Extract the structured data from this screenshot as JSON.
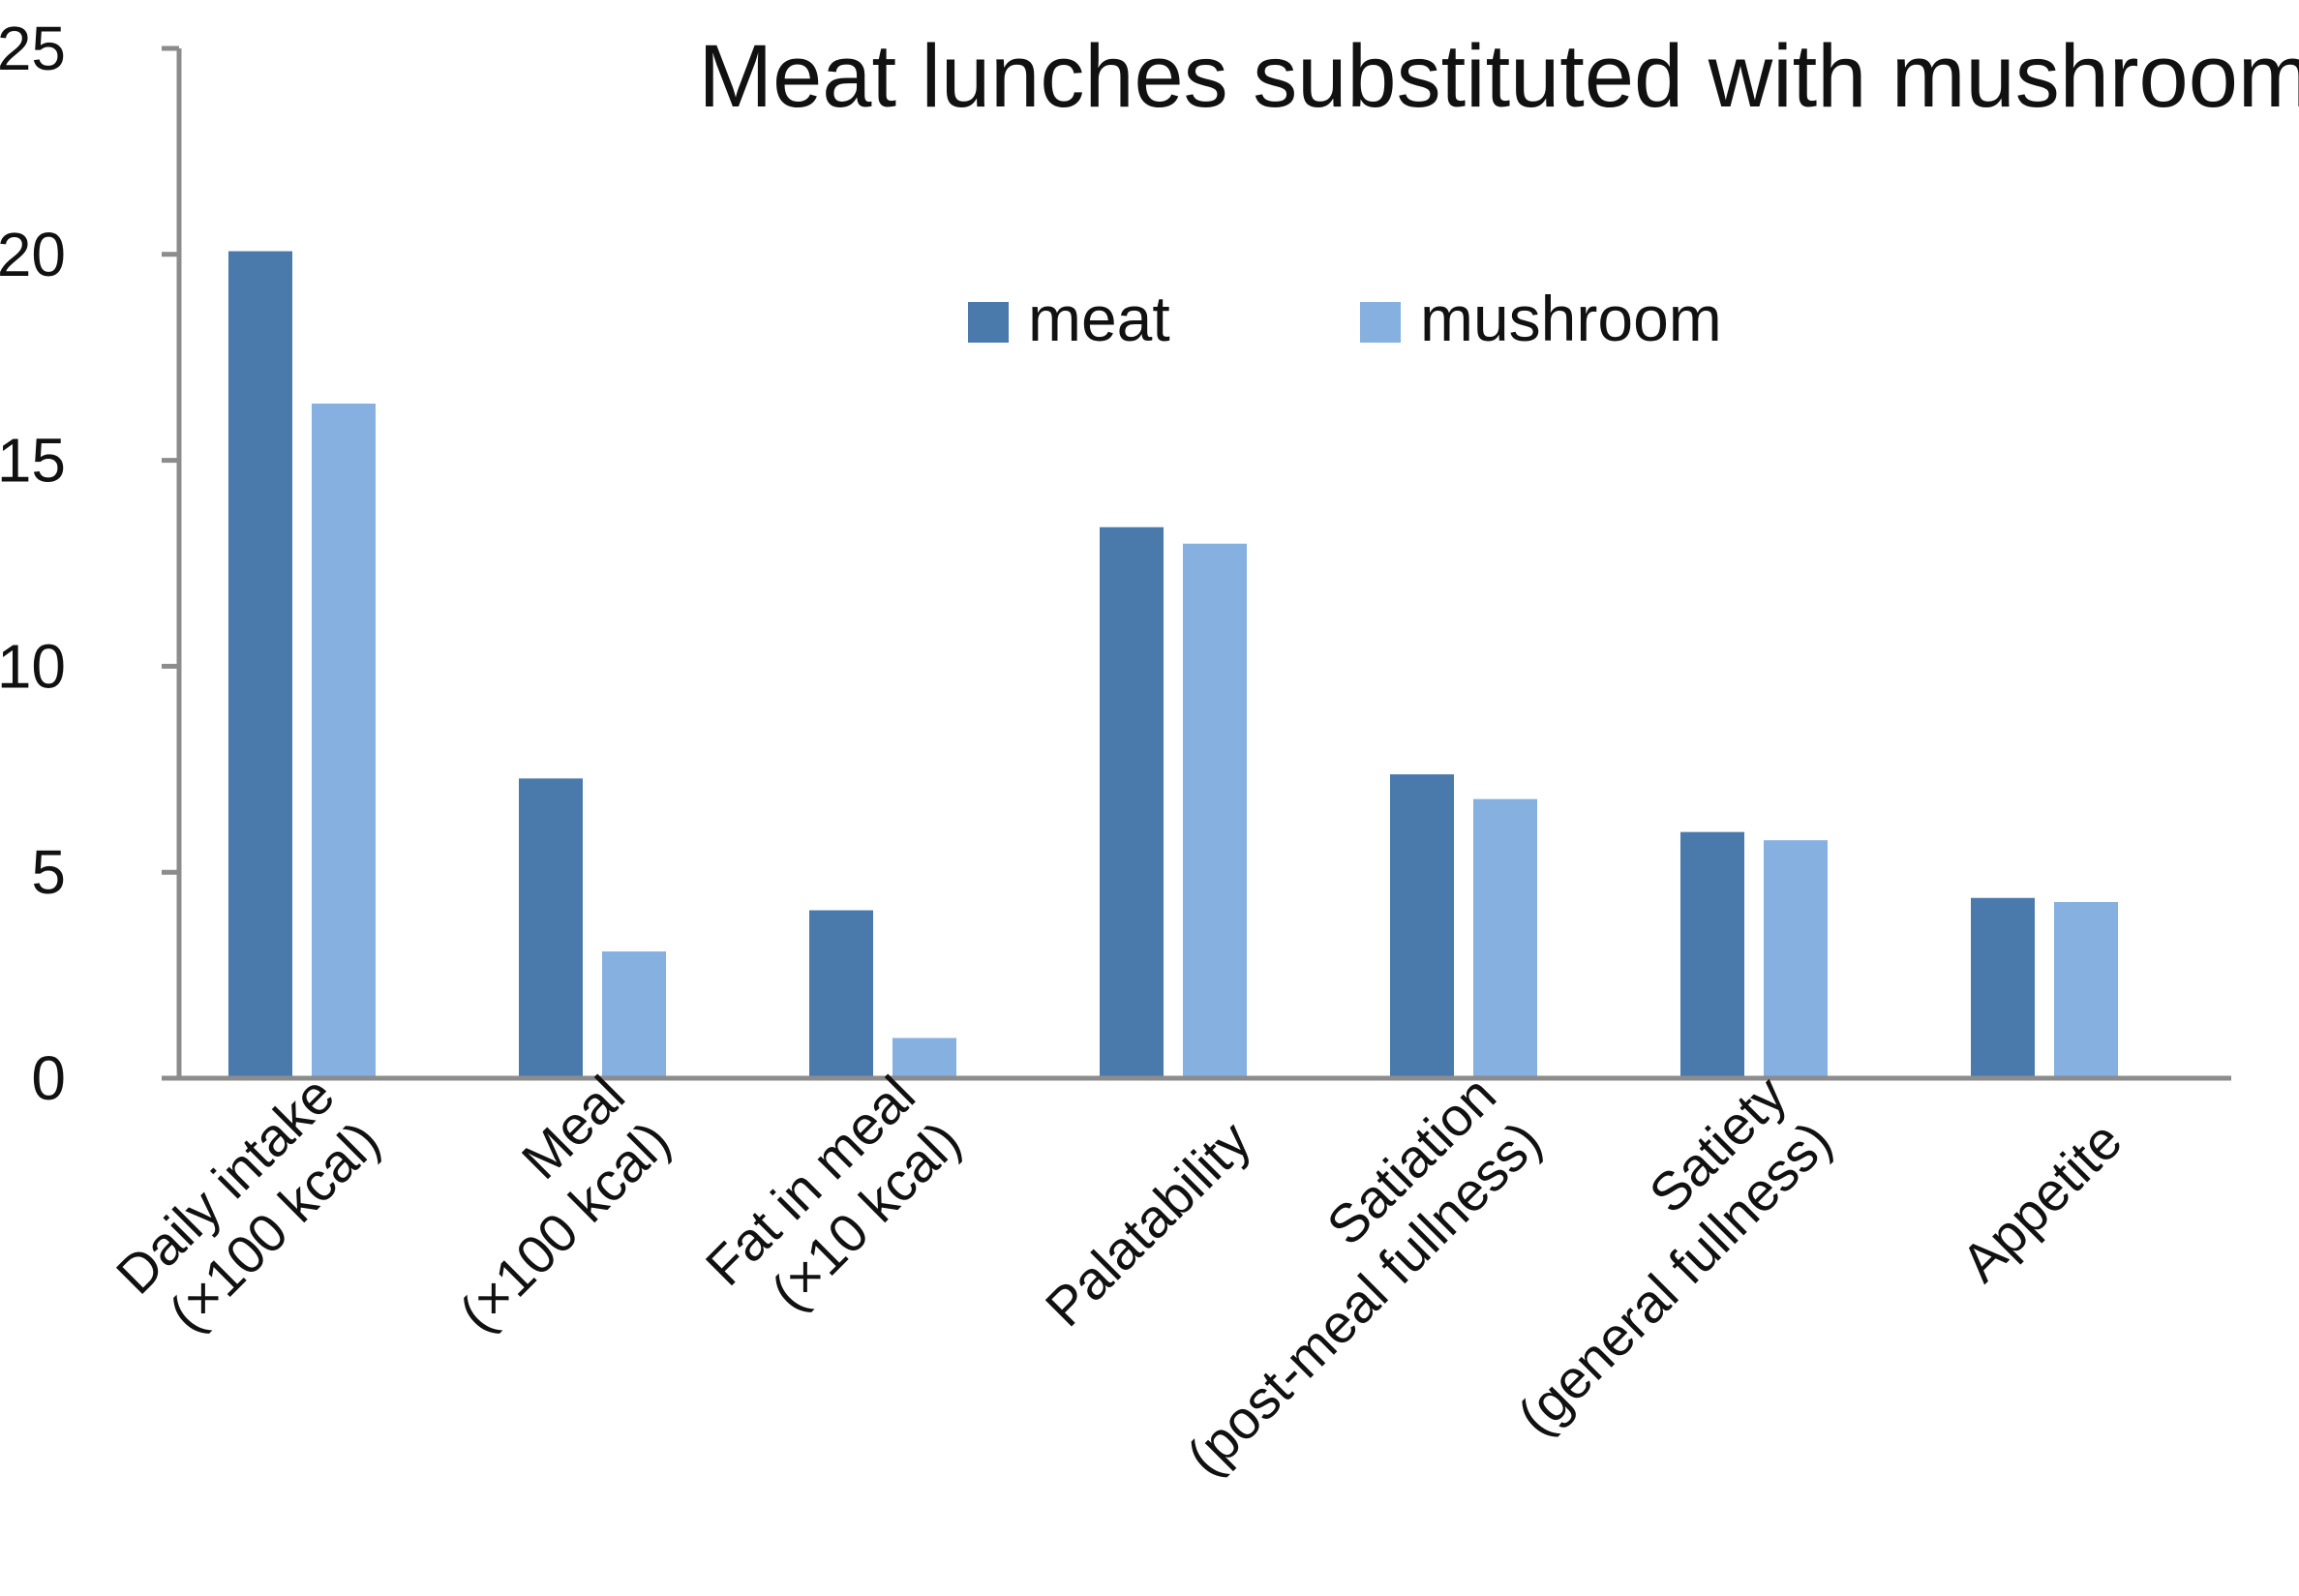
{
  "chart_data": {
    "type": "bar",
    "title": "Meat lunches substituted with mushrooms",
    "xlabel": "",
    "ylabel": "",
    "ylim": [
      0,
      25
    ],
    "yticks": [
      0,
      5,
      10,
      15,
      20,
      25
    ],
    "grid": false,
    "legend_position": "top-center",
    "categories": [
      [
        "Daily intake",
        "(×100 kcal)"
      ],
      [
        "Meal",
        "(×100 kcal)"
      ],
      [
        "Fat in meal",
        "(×10 kcal)"
      ],
      [
        "Palatability"
      ],
      [
        "Satiation",
        "(post-meal fullness)"
      ],
      [
        "Satiety",
        "(general fullness)"
      ],
      [
        "Appetite"
      ]
    ],
    "series": [
      {
        "name": "meat",
        "color": "#4a7aab",
        "values": [
          20.1,
          7.3,
          4.1,
          13.4,
          7.4,
          6.0,
          4.4
        ]
      },
      {
        "name": "mushroom",
        "color": "#86b0df",
        "values": [
          16.4,
          3.1,
          1.0,
          13.0,
          6.8,
          5.8,
          4.3
        ]
      }
    ]
  }
}
